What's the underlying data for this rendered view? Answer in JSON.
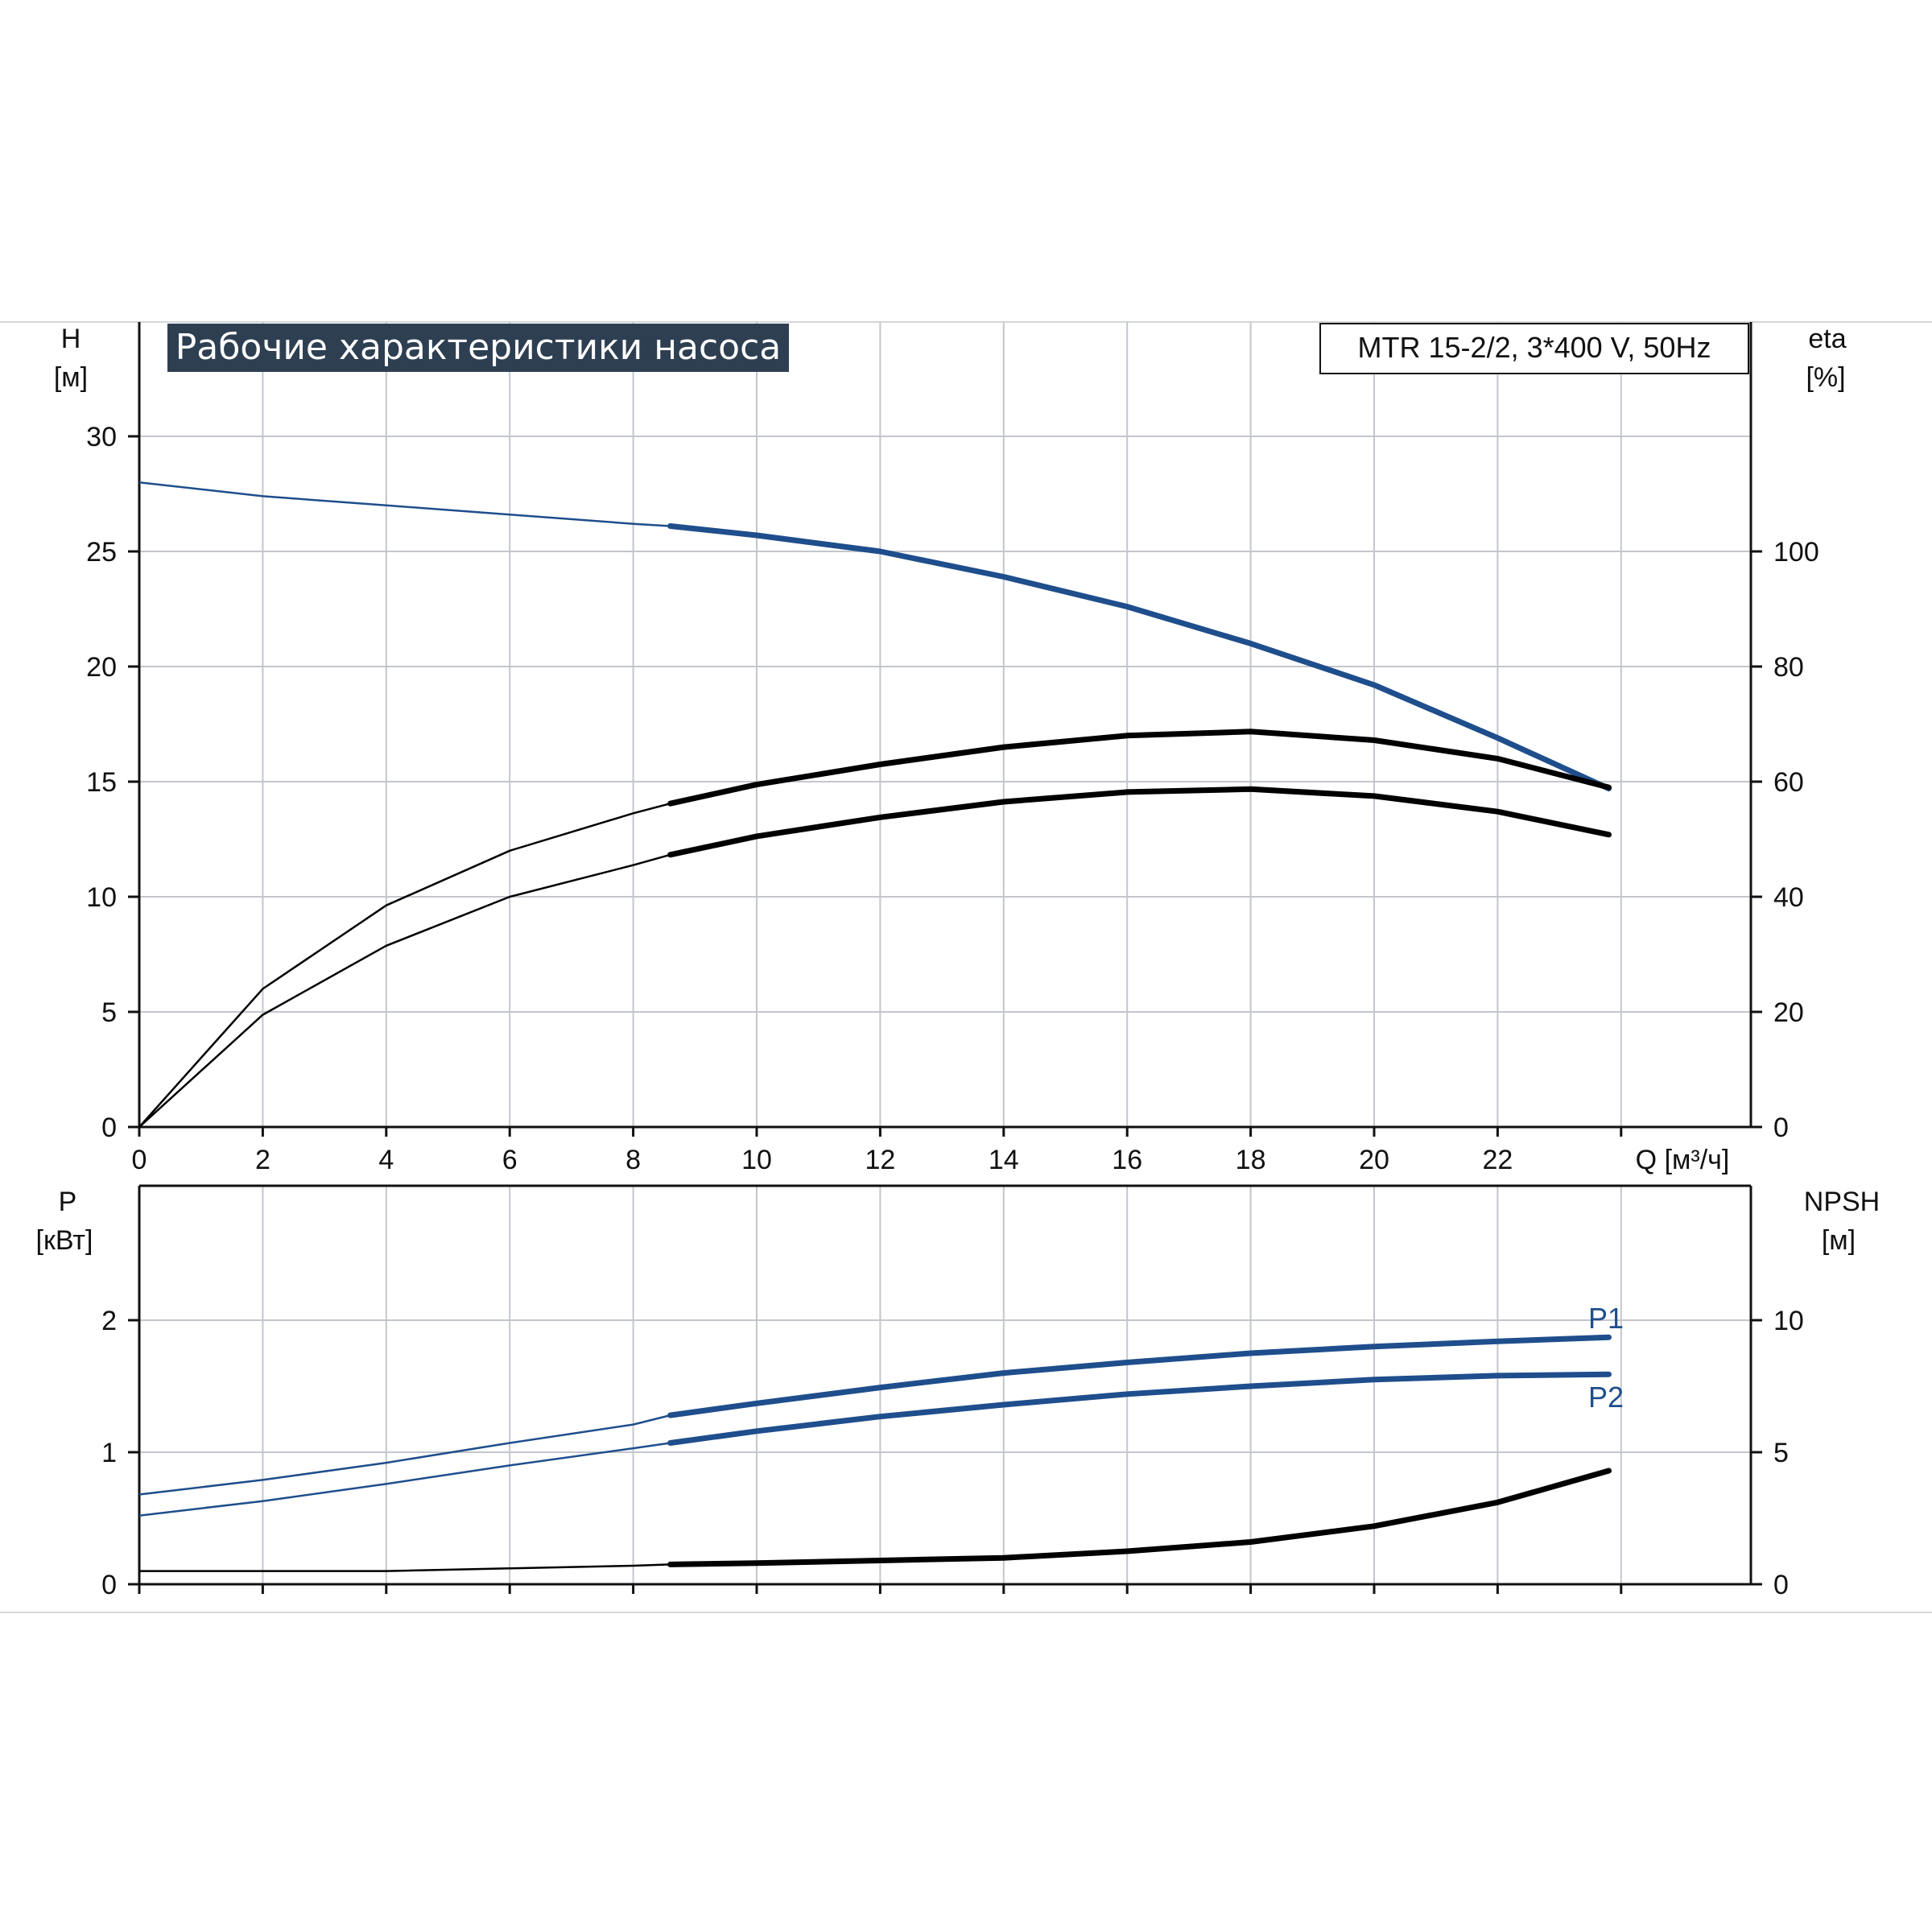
{
  "title": "Рабочие характеристики насоса",
  "model_label": "MTR 15-2/2, 3*400 V, 50Hz",
  "colors": {
    "accent_blue": "#1f4e8c",
    "curve_black": "#000000",
    "title_bg": "#2e3f52",
    "grid": "#c3c6cc"
  },
  "chart_data": [
    {
      "type": "line",
      "name": "top-panel",
      "xlabel": "Q [м³/ч]",
      "x_ticks": [
        "0",
        "2",
        "4",
        "6",
        "8",
        "10",
        "12",
        "14",
        "16",
        "18",
        "20",
        "22"
      ],
      "xlim": [
        0,
        26
      ],
      "y_left": {
        "label_top": "H",
        "label_unit": "[м]",
        "ticks": [
          "0",
          "5",
          "10",
          "15",
          "20",
          "25",
          "30"
        ],
        "ylim": [
          0,
          35
        ]
      },
      "y_right": {
        "label_top": "eta",
        "label_unit": "[%]",
        "ticks": [
          "0",
          "20",
          "40",
          "60",
          "80",
          "100"
        ],
        "ylim": [
          0,
          140
        ]
      },
      "grid": true,
      "series": [
        {
          "axis": "left",
          "color": "#1f4e8c",
          "bold_from": 8.6,
          "x": [
            0,
            2,
            4,
            6,
            8,
            8.6,
            10,
            12,
            14,
            16,
            18,
            20,
            22,
            23.8
          ],
          "y": [
            28.0,
            27.4,
            27.0,
            26.6,
            26.2,
            26.1,
            25.7,
            25.0,
            23.9,
            22.6,
            21.0,
            19.2,
            16.9,
            14.7
          ]
        },
        {
          "axis": "right",
          "color": "#000000",
          "bold_from": 8.6,
          "x": [
            0,
            2,
            4,
            6,
            8,
            8.6,
            10,
            12,
            14,
            16,
            18,
            20,
            22,
            23.8
          ],
          "y": [
            0,
            24,
            38.5,
            48,
            54.5,
            56.2,
            59.5,
            63,
            66,
            68,
            68.7,
            67.2,
            64,
            59
          ]
        },
        {
          "axis": "right",
          "color": "#000000",
          "bold_from": 8.6,
          "x": [
            0,
            2,
            4,
            6,
            8,
            8.6,
            10,
            12,
            14,
            16,
            18,
            20,
            22,
            23.8
          ],
          "y": [
            0,
            19.5,
            31.5,
            40,
            45.5,
            47.3,
            50.5,
            53.8,
            56.5,
            58.2,
            58.7,
            57.5,
            54.8,
            50.8
          ]
        }
      ]
    },
    {
      "type": "line",
      "name": "bottom-panel",
      "xlabel": "",
      "xlim": [
        0,
        26
      ],
      "y_left": {
        "label_top": "P",
        "label_unit": "[кВт]",
        "ticks": [
          "0",
          "1",
          "2"
        ],
        "ylim": [
          0,
          3
        ]
      },
      "y_right": {
        "label_top": "NPSH",
        "label_unit": "[м]",
        "ticks": [
          "0",
          "5",
          "10"
        ],
        "ylim": [
          0,
          15
        ]
      },
      "grid": true,
      "series": [
        {
          "name": "P1",
          "axis": "left",
          "color": "#1f4e8c",
          "bold_from": 8.6,
          "x": [
            0,
            2,
            4,
            6,
            8,
            8.6,
            10,
            12,
            14,
            16,
            18,
            20,
            22,
            23.8
          ],
          "y": [
            0.68,
            0.79,
            0.92,
            1.07,
            1.21,
            1.28,
            1.37,
            1.49,
            1.6,
            1.68,
            1.75,
            1.8,
            1.84,
            1.87
          ]
        },
        {
          "name": "P2",
          "axis": "left",
          "color": "#1f4e8c",
          "bold_from": 8.6,
          "x": [
            0,
            2,
            4,
            6,
            8,
            8.6,
            10,
            12,
            14,
            16,
            18,
            20,
            22,
            23.8
          ],
          "y": [
            0.52,
            0.63,
            0.76,
            0.9,
            1.03,
            1.07,
            1.16,
            1.27,
            1.36,
            1.44,
            1.5,
            1.55,
            1.58,
            1.59
          ]
        },
        {
          "axis": "right",
          "color": "#000000",
          "bold_from": 8.6,
          "x": [
            0,
            4,
            6,
            8,
            8.6,
            10,
            12,
            14,
            16,
            18,
            20,
            22,
            23.8
          ],
          "y": [
            0.5,
            0.5,
            0.6,
            0.7,
            0.75,
            0.8,
            0.9,
            1.0,
            1.25,
            1.6,
            2.2,
            3.1,
            4.3
          ]
        }
      ]
    }
  ]
}
